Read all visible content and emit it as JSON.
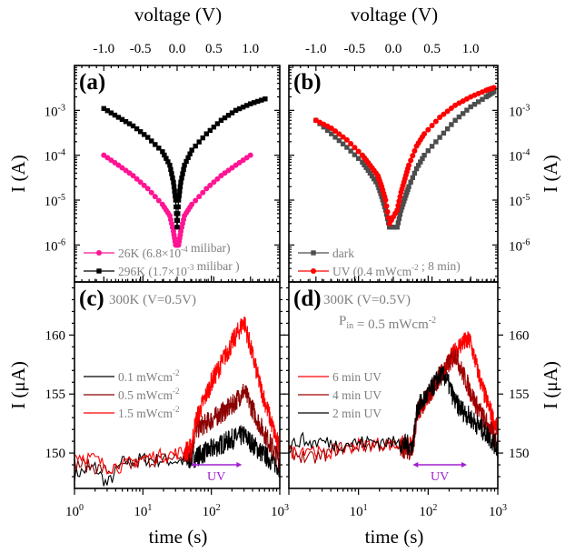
{
  "figure": {
    "top_axis_title": "voltage (V)",
    "bottom_axis_title": "time (s)"
  },
  "chart_data": [
    {
      "panel": "a",
      "type": "line",
      "panel_label": "(a)",
      "xlabel": "voltage (V)",
      "ylabel": "I (A)",
      "xscale": "linear",
      "yscale": "log",
      "xlim": [
        -1.4,
        1.4
      ],
      "ylim": [
        1.5e-07,
        0.01
      ],
      "x_ticks": [
        -1.0,
        -0.5,
        0.0,
        0.5,
        1.0
      ],
      "x_tick_labels": [
        "-1.0",
        "-0.5",
        "0.0",
        "0.5",
        "1.0"
      ],
      "y_ticks": [
        0.001,
        0.0001,
        1e-05,
        1e-06
      ],
      "y_tick_labels": [
        {
          "base": "10",
          "exp": "-3"
        },
        {
          "base": "10",
          "exp": "-4"
        },
        {
          "base": "10",
          "exp": "-5"
        },
        {
          "base": "10",
          "exp": "-6"
        }
      ],
      "yaxis_side": "left",
      "legend_position": "bottom-left",
      "series": [
        {
          "name": "26K",
          "legend": {
            "pre": "26K (6.8×10",
            "sup": "-4",
            "post": " milibar)"
          },
          "color": "#ff1493",
          "marker": "circle",
          "x": [
            -1.0,
            -0.8,
            -0.6,
            -0.4,
            -0.2,
            -0.1,
            -0.05,
            -0.02,
            0.02,
            0.05,
            0.1,
            0.2,
            0.4,
            0.6,
            0.8,
            1.0
          ],
          "y": [
            0.0001,
            6e-05,
            3.5e-05,
            1.8e-05,
            8e-06,
            4.5e-06,
            2e-06,
            1e-06,
            1e-06,
            2e-06,
            4.5e-06,
            8e-06,
            1.8e-05,
            3.5e-05,
            6e-05,
            0.0001
          ]
        },
        {
          "name": "296K",
          "legend": {
            "pre": "296K (1.7×10",
            "sup": "-3",
            "post": " milibar )"
          },
          "color": "#000000",
          "marker": "square",
          "x": [
            -1.0,
            -0.8,
            -0.6,
            -0.4,
            -0.2,
            -0.1,
            -0.05,
            -0.02,
            0.0,
            0.02,
            0.05,
            0.1,
            0.2,
            0.4,
            0.6,
            0.8,
            1.0,
            1.2
          ],
          "y": [
            0.0011,
            0.0007,
            0.00045,
            0.00025,
            0.00012,
            6e-05,
            2.5e-05,
            1e-05,
            2.5e-06,
            1e-05,
            2.5e-05,
            6e-05,
            0.00013,
            0.0003,
            0.0006,
            0.001,
            0.0014,
            0.0018
          ]
        }
      ]
    },
    {
      "panel": "b",
      "type": "line",
      "panel_label": "(b)",
      "xlabel": "voltage (V)",
      "ylabel": "I (A)",
      "xscale": "linear",
      "yscale": "log",
      "xlim": [
        -1.35,
        1.35
      ],
      "ylim": [
        1.5e-07,
        0.01
      ],
      "x_ticks": [
        -1.0,
        -0.5,
        0.0,
        0.5,
        1.0
      ],
      "x_tick_labels": [
        "-1.0",
        "-0.5",
        "0.0",
        "0.5",
        "1.0"
      ],
      "y_ticks": [
        0.001,
        0.0001,
        1e-05,
        1e-06
      ],
      "y_tick_labels": [
        {
          "base": "10",
          "exp": "-3"
        },
        {
          "base": "10",
          "exp": "-4"
        },
        {
          "base": "10",
          "exp": "-5"
        },
        {
          "base": "10",
          "exp": "-6"
        }
      ],
      "yaxis_side": "right",
      "legend_position": "bottom-left",
      "series": [
        {
          "name": "dark",
          "legend": {
            "pre": "dark",
            "sup": "",
            "post": ""
          },
          "color": "#4d4d4d",
          "marker": "square",
          "x": [
            -1.0,
            -0.8,
            -0.6,
            -0.4,
            -0.3,
            -0.2,
            -0.15,
            -0.1,
            -0.05,
            0.05,
            0.1,
            0.15,
            0.2,
            0.3,
            0.4,
            0.6,
            0.8,
            1.0,
            1.2,
            1.3
          ],
          "y": [
            0.0006,
            0.0003,
            0.00015,
            7e-05,
            4e-05,
            2.2e-05,
            1.2e-05,
            6e-06,
            2.5e-06,
            2.5e-06,
            6e-06,
            1.1e-05,
            2e-05,
            5e-05,
            0.0001,
            0.00025,
            0.0006,
            0.0012,
            0.002,
            0.0026
          ]
        },
        {
          "name": "UV",
          "legend": {
            "pre": "UV (0.4 mWcm",
            "sup": "-2",
            "post": " ; 8 min)"
          },
          "color": "#ff0000",
          "marker": "circle",
          "x": [
            -1.0,
            -0.8,
            -0.6,
            -0.4,
            -0.3,
            -0.2,
            -0.15,
            -0.1,
            -0.05,
            0.05,
            0.1,
            0.15,
            0.2,
            0.3,
            0.4,
            0.6,
            0.8,
            1.0,
            1.2,
            1.3
          ],
          "y": [
            0.0006,
            0.0004,
            0.00022,
            0.0001,
            6e-05,
            3.5e-05,
            2e-05,
            1e-05,
            3e-06,
            6e-06,
            1.5e-05,
            3e-05,
            6e-05,
            0.00016,
            0.0003,
            0.0007,
            0.0013,
            0.002,
            0.0028,
            0.0032
          ]
        }
      ]
    },
    {
      "panel": "c",
      "type": "line",
      "panel_label": "(c)",
      "annotation": "300K (V=0.5V)",
      "xlabel": "time (s)",
      "ylabel": "I (μA)",
      "xscale": "log",
      "yscale": "linear",
      "xlim": [
        1,
        1000
      ],
      "ylim": [
        147,
        164.5
      ],
      "x_ticks": [
        1,
        10,
        100,
        1000
      ],
      "x_tick_labels": [
        {
          "base": "10",
          "exp": "0"
        },
        {
          "base": "10",
          "exp": "1"
        },
        {
          "base": "10",
          "exp": "2"
        },
        {
          "base": "10",
          "exp": "3"
        }
      ],
      "y_ticks": [
        150,
        155,
        160
      ],
      "y_tick_labels": [
        "150",
        "155",
        "160"
      ],
      "yaxis_side": "left",
      "legend_position": "center-left",
      "uv_window": {
        "label": "UV",
        "start": 50,
        "end": 280
      },
      "series": [
        {
          "name": "0.1 mWcm-2",
          "legend": {
            "pre": "0.1 mWcm",
            "sup": "-2",
            "post": ""
          },
          "color": "#000000",
          "x": [
            1,
            2,
            3,
            5,
            10,
            20,
            40,
            60,
            100,
            200,
            300,
            500,
            1000
          ],
          "y": [
            148.2,
            148.8,
            147.3,
            149.2,
            149.5,
            149.4,
            149.3,
            149.7,
            150.3,
            151.2,
            151.5,
            150.2,
            148.8
          ]
        },
        {
          "name": "0.5 mWcm-2",
          "legend": {
            "pre": "0.5 mWcm",
            "sup": "-2",
            "post": ""
          },
          "color": "#8b0000",
          "x": [
            1,
            2,
            3,
            5,
            10,
            20,
            40,
            50,
            60,
            100,
            200,
            300,
            500,
            1000
          ],
          "y": [
            149.1,
            148.8,
            148.5,
            148.7,
            149.3,
            149.5,
            149.7,
            150.0,
            152.0,
            152.8,
            154.0,
            155.3,
            152.5,
            149.3
          ]
        },
        {
          "name": "1.5 mWcm-2",
          "legend": {
            "pre": "1.5 mWcm",
            "sup": "-2",
            "post": ""
          },
          "color": "#ff0000",
          "x": [
            1,
            2,
            3,
            5,
            10,
            20,
            40,
            50,
            60,
            100,
            200,
            300,
            500,
            1000
          ],
          "y": [
            149.9,
            149.5,
            148.8,
            148.9,
            149.6,
            149.8,
            150.1,
            150.4,
            152.8,
            156.0,
            159.3,
            161.2,
            156.0,
            150.2
          ]
        }
      ]
    },
    {
      "panel": "d",
      "type": "line",
      "panel_label": "(d)",
      "annotation": "300K (V=0.5V)",
      "annotation2": {
        "pre": "P",
        "sub": "in",
        "mid": " = 0.5 mWcm",
        "sup": "-2"
      },
      "xlabel": "time (s)",
      "ylabel": "I (μA)",
      "xscale": "log",
      "yscale": "linear",
      "xlim": [
        1,
        1000
      ],
      "ylim": [
        147,
        164.5
      ],
      "x_ticks": [
        10,
        100,
        1000
      ],
      "x_tick_labels": [
        {
          "base": "10",
          "exp": "1"
        },
        {
          "base": "10",
          "exp": "2"
        },
        {
          "base": "10",
          "exp": "3"
        }
      ],
      "y_ticks": [
        150,
        155,
        160
      ],
      "y_tick_labels": [
        "150",
        "155",
        "160"
      ],
      "yaxis_side": "right",
      "legend_position": "center-left",
      "uv_window": {
        "label": "UV",
        "start": 60,
        "end": 360
      },
      "series": [
        {
          "name": "6 min UV",
          "legend": {
            "pre": "6 min UV",
            "sup": "",
            "post": ""
          },
          "color": "#ff0000",
          "x": [
            1,
            2,
            3,
            5,
            10,
            20,
            40,
            60,
            70,
            100,
            150,
            200,
            300,
            400,
            600,
            1000
          ],
          "y": [
            150.0,
            150.5,
            149.8,
            150.3,
            150.7,
            150.8,
            150.6,
            150.5,
            153.5,
            154.8,
            156.5,
            157.8,
            159.3,
            159.5,
            155.5,
            151.8
          ]
        },
        {
          "name": "4 min UV",
          "legend": {
            "pre": "4 min UV",
            "sup": "",
            "post": ""
          },
          "color": "#a00000",
          "x": [
            1,
            2,
            3,
            5,
            10,
            20,
            40,
            60,
            70,
            100,
            150,
            200,
            250,
            300,
            500,
            1000
          ],
          "y": [
            150.1,
            149.5,
            149.7,
            150.4,
            150.6,
            150.7,
            150.5,
            150.2,
            153.5,
            154.8,
            156.7,
            157.6,
            158.4,
            157.0,
            154.0,
            150.8
          ]
        },
        {
          "name": "2 min UV",
          "legend": {
            "pre": "2 min UV",
            "sup": "",
            "post": ""
          },
          "color": "#000000",
          "x": [
            1,
            1.5,
            2,
            3,
            5,
            10,
            20,
            40,
            60,
            70,
            100,
            150,
            180,
            250,
            400,
            700,
            1000
          ],
          "y": [
            150.4,
            151.2,
            150.8,
            151.0,
            150.7,
            150.9,
            151.0,
            150.8,
            150.6,
            153.8,
            155.0,
            156.6,
            156.4,
            154.2,
            153.0,
            151.6,
            150.4
          ]
        }
      ]
    }
  ]
}
